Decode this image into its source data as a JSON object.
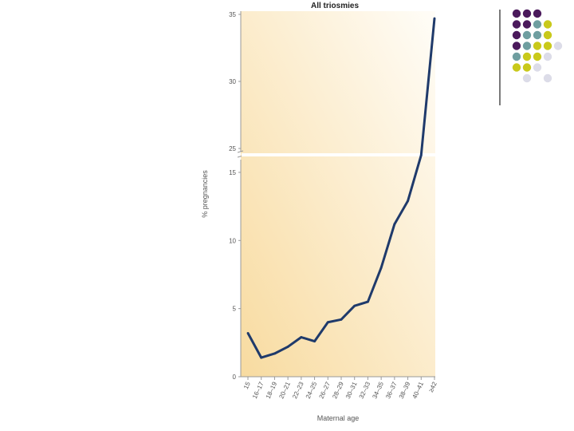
{
  "chart_data": {
    "type": "line",
    "title": "All triosmies",
    "xlabel": "Maternal age",
    "ylabel": "% pregnancies",
    "categories": [
      "15",
      "16–17",
      "18–19",
      "20–21",
      "22–23",
      "24–25",
      "26–27",
      "28–29",
      "30–31",
      "32–33",
      "34–35",
      "36–37",
      "38–39",
      "40–41",
      "≥42"
    ],
    "series": [
      {
        "values": [
          3.2,
          1.4,
          1.7,
          2.2,
          2.9,
          2.6,
          4.0,
          4.2,
          5.2,
          5.5,
          8.0,
          11.2,
          12.9,
          24.5,
          34.7
        ]
      }
    ],
    "y_ticks_lower": [
      0,
      5,
      10,
      15
    ],
    "y_ticks_upper": [
      25,
      30,
      35
    ],
    "axis_break": [
      16.5,
      24.5
    ],
    "ylim": [
      0,
      35
    ],
    "line_color": "#1f3a6b",
    "background_gradient": [
      "#f8dba0",
      "#fffdf8"
    ]
  },
  "decor": {
    "dot_colors": [
      "#4b1a5c",
      "#6f9ea0",
      "#c9c91a",
      "#dcdce8"
    ],
    "dot_grid": [
      [
        0,
        0,
        0,
        -1,
        -1
      ],
      [
        0,
        0,
        1,
        2,
        -1
      ],
      [
        0,
        1,
        1,
        2,
        -1
      ],
      [
        0,
        1,
        2,
        2,
        3
      ],
      [
        1,
        2,
        2,
        3,
        -1
      ],
      [
        2,
        2,
        3,
        -1,
        -1
      ],
      [
        -1,
        3,
        -1,
        3,
        -1
      ]
    ]
  }
}
